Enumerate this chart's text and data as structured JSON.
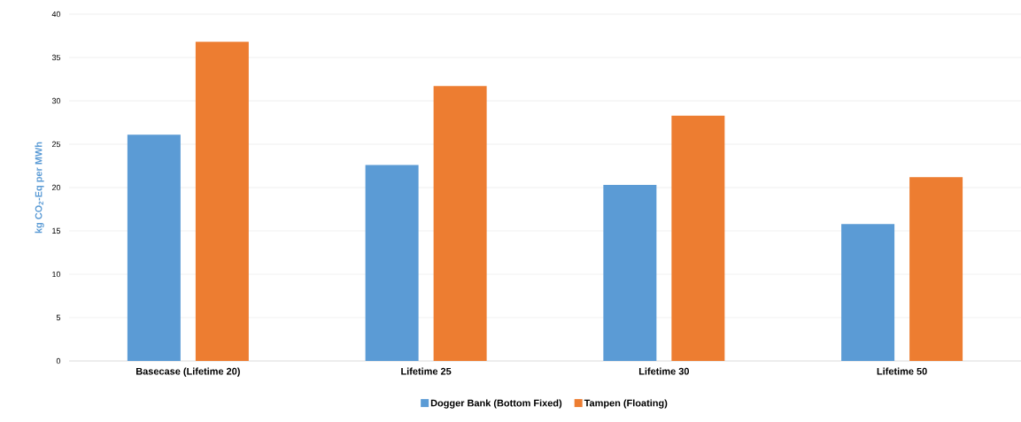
{
  "chart_data": {
    "type": "bar",
    "ylabel": "kg CO$_{2}$-Eq per MWh",
    "categories": [
      "Basecase (Lifetime 20)",
      "Lifetime 25",
      "Lifetime 30",
      "Lifetime 50"
    ],
    "series": [
      {
        "name": "Dogger Bank (Bottom Fixed)",
        "color": "#5b9bd5",
        "values": [
          26.1,
          22.6,
          20.3,
          15.8
        ]
      },
      {
        "name": "Tampen (Floating)",
        "color": "#ed7d31",
        "values": [
          36.8,
          31.7,
          28.3,
          21.2
        ]
      }
    ],
    "ylim": [
      0,
      40
    ],
    "yticks": [
      0,
      5,
      10,
      15,
      20,
      25,
      30,
      35,
      40
    ],
    "grid": "y",
    "legend": "bottom"
  }
}
